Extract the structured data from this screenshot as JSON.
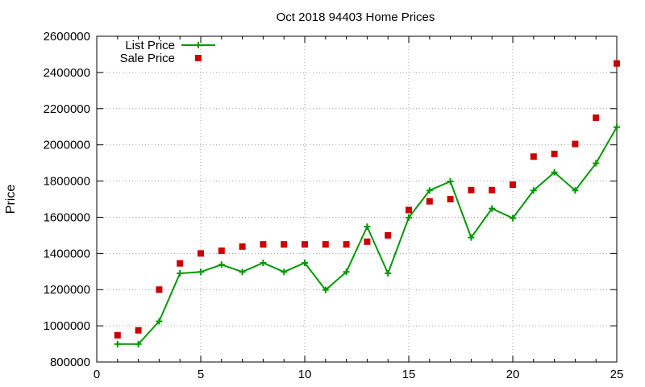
{
  "chart_data": {
    "type": "line",
    "title": "Oct 2018 94403 Home Prices",
    "xlabel": "",
    "ylabel": "Price",
    "xlim": [
      0,
      25
    ],
    "ylim": [
      800000,
      2600000
    ],
    "x_ticks": [
      0,
      5,
      10,
      15,
      20,
      25
    ],
    "y_ticks": [
      800000,
      1000000,
      1200000,
      1400000,
      1600000,
      1800000,
      2000000,
      2200000,
      2400000,
      2600000
    ],
    "grid": true,
    "legend_position": "top-left",
    "series": [
      {
        "name": "List Price",
        "style": "line-with-plus-markers",
        "color": "#009900",
        "x": [
          1,
          2,
          3,
          4,
          5,
          6,
          7,
          8,
          9,
          10,
          11,
          12,
          13,
          14,
          15,
          16,
          17,
          18,
          19,
          20,
          21,
          22,
          23,
          24,
          25
        ],
        "values": [
          899000,
          899000,
          1025000,
          1290000,
          1298000,
          1338000,
          1298000,
          1348000,
          1298000,
          1348000,
          1198000,
          1298000,
          1548000,
          1290000,
          1598000,
          1748000,
          1798000,
          1488000,
          1648000,
          1595000,
          1748000,
          1848000,
          1748000,
          1898000,
          2098000
        ]
      },
      {
        "name": "Sale Price",
        "style": "square-points",
        "color": "#cc0000",
        "x": [
          1,
          2,
          3,
          4,
          5,
          6,
          7,
          8,
          9,
          10,
          11,
          12,
          13,
          14,
          15,
          16,
          17,
          18,
          19,
          20,
          21,
          22,
          23,
          24,
          25
        ],
        "values": [
          948000,
          975000,
          1200000,
          1345000,
          1400000,
          1415000,
          1438000,
          1450000,
          1450000,
          1450000,
          1450000,
          1450000,
          1465000,
          1500000,
          1640000,
          1688000,
          1700000,
          1750000,
          1750000,
          1780000,
          1935000,
          1950000,
          2005000,
          2150000,
          2450000
        ]
      }
    ]
  }
}
